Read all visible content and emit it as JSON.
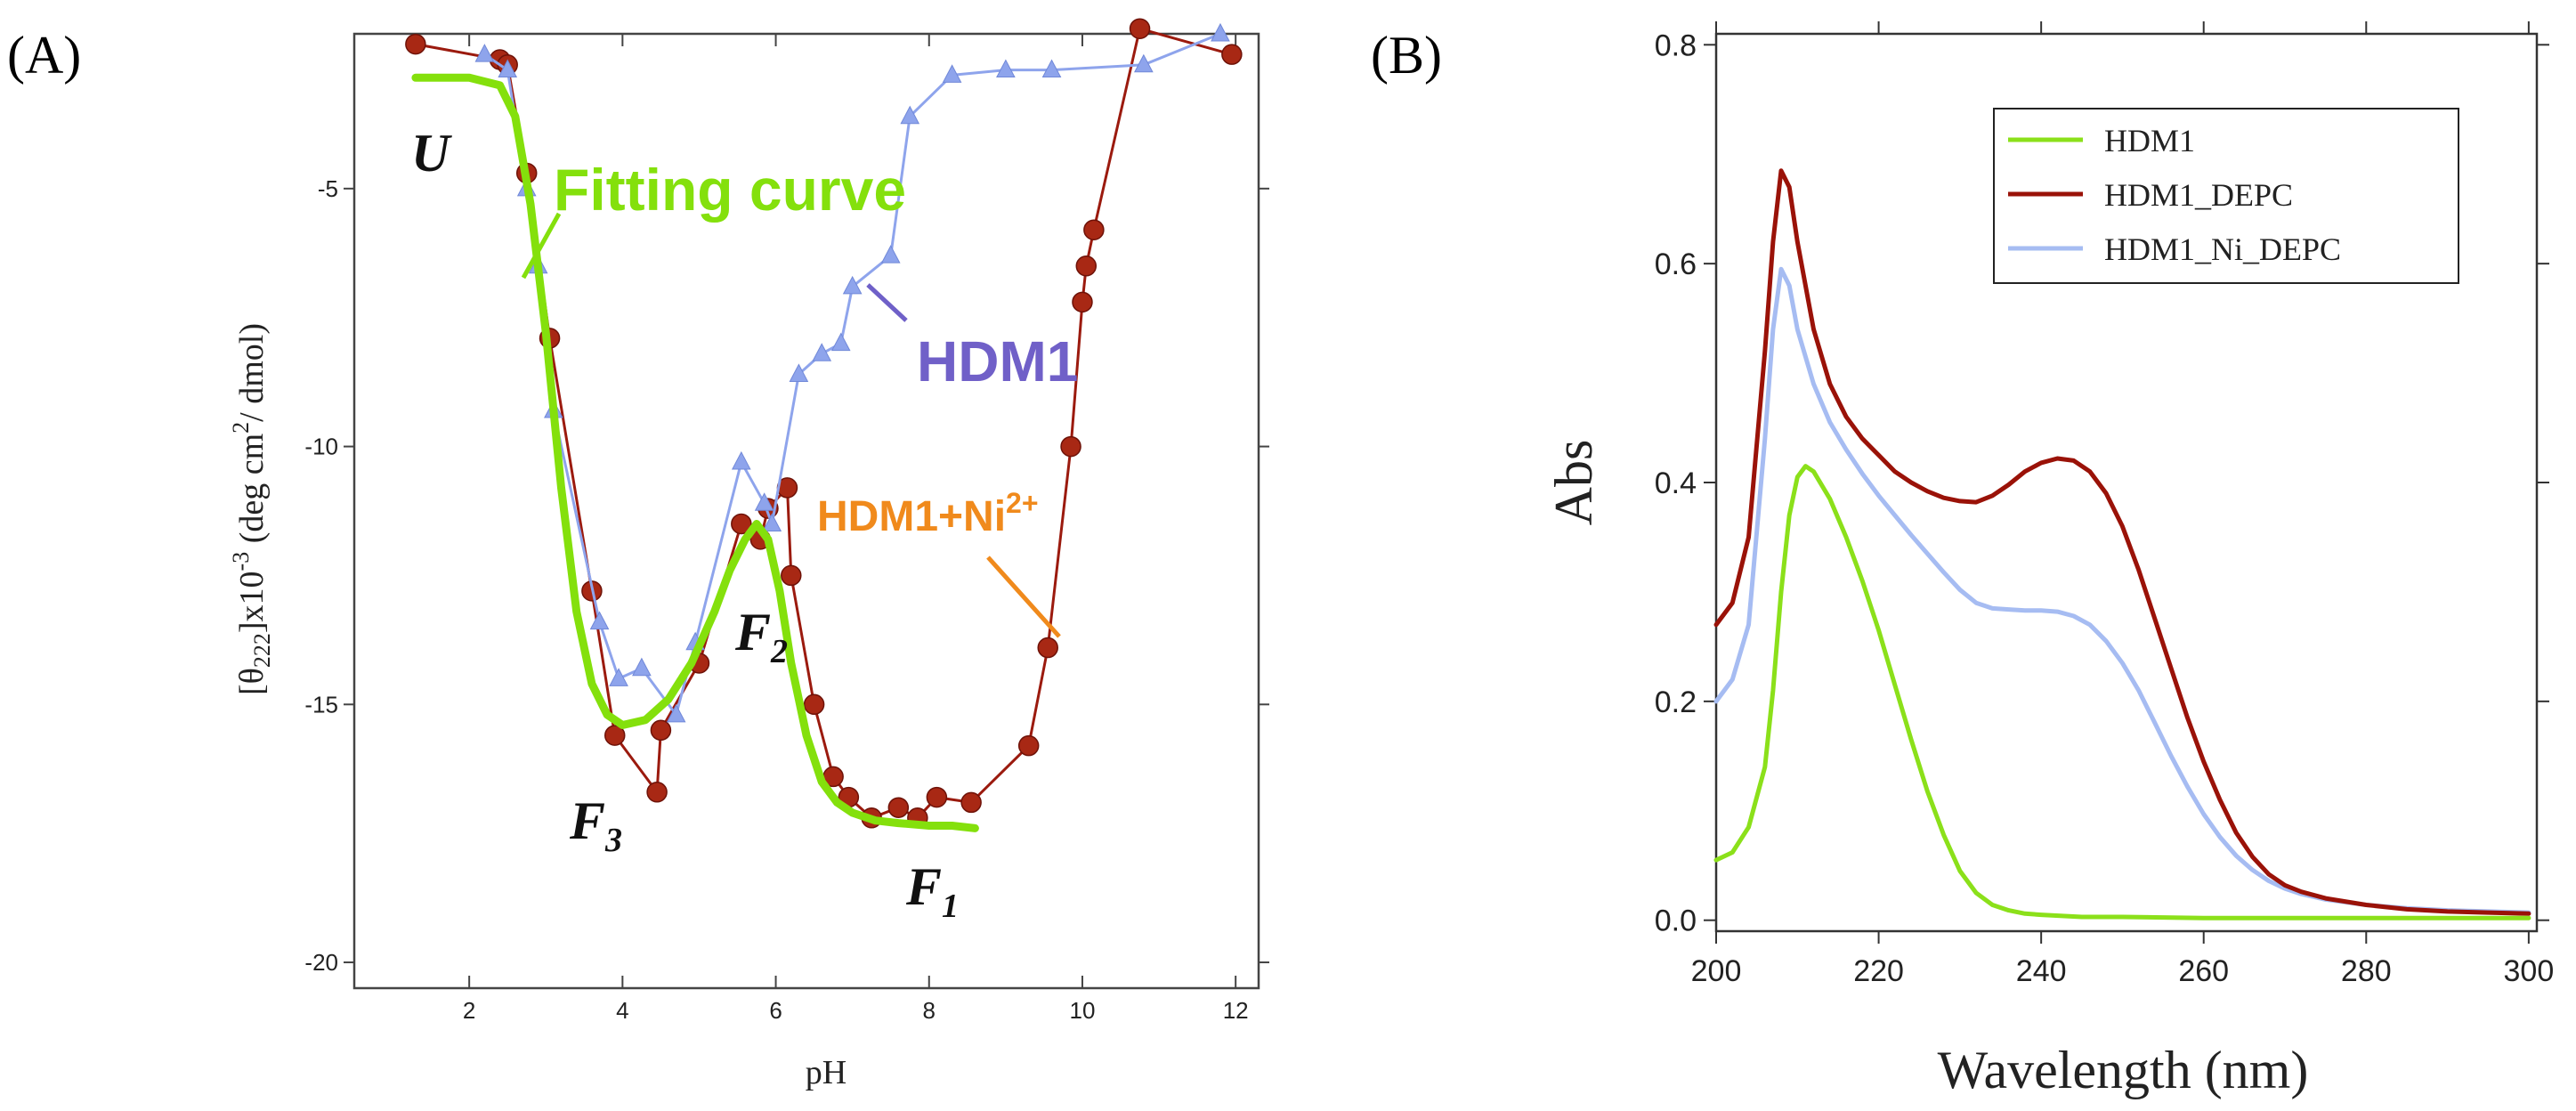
{
  "panel_labels": {
    "a": "(A)",
    "b": "(B)"
  },
  "chart_data": [
    {
      "type": "line",
      "panel": "(A)",
      "xlabel": "pH",
      "ylabel": "[θ222]x10-3 (deg cm2/ dmol)",
      "ylabel_parts": {
        "open": "[θ",
        "sub": "222",
        "mid": "]x10",
        "sup1": "-3",
        "unit": " (deg cm",
        "sup2": "2",
        "tail": "/ dmol)"
      },
      "xlim": [
        0.5,
        12.3
      ],
      "ylim": [
        -20.5,
        -2.0
      ],
      "xticks": [
        2,
        4,
        6,
        8,
        10,
        12
      ],
      "yticks": [
        -5,
        -10,
        -15,
        -20
      ],
      "xtick_labels": [
        "2",
        "4",
        "6",
        "8",
        "10",
        "12"
      ],
      "ytick_labels": [
        "-5",
        "-10",
        "-15",
        "-20"
      ],
      "series": [
        {
          "name": "HDM1+Ni2+",
          "color": "#9b1a0e",
          "marker": "circle",
          "x": [
            1.3,
            2.4,
            2.5,
            2.75,
            3.05,
            3.6,
            3.9,
            4.45,
            4.5,
            5.0,
            5.55,
            5.8,
            5.9,
            6.15,
            6.2,
            6.5,
            6.75,
            6.95,
            7.25,
            7.6,
            7.85,
            8.1,
            8.55,
            9.3,
            9.55,
            9.85,
            10.0,
            10.05,
            10.15,
            10.75,
            11.95
          ],
          "y": [
            -2.2,
            -2.5,
            -2.6,
            -4.7,
            -7.9,
            -12.8,
            -15.6,
            -16.7,
            -15.5,
            -14.2,
            -11.5,
            -11.8,
            -11.2,
            -10.8,
            -12.5,
            -15.0,
            -16.4,
            -16.8,
            -17.2,
            -17.0,
            -17.2,
            -16.8,
            -16.9,
            -15.8,
            -13.9,
            -10.0,
            -7.2,
            -6.5,
            -5.8,
            -1.9,
            -2.4
          ]
        },
        {
          "name": "HDM1",
          "color": "#8ea4ec",
          "marker": "triangle",
          "x": [
            2.2,
            2.5,
            2.75,
            2.9,
            3.1,
            3.7,
            3.95,
            4.25,
            4.7,
            4.95,
            5.55,
            5.85,
            5.95,
            6.3,
            6.6,
            6.85,
            7.0,
            7.5,
            7.75,
            8.3,
            9.0,
            9.6,
            10.8,
            11.8
          ],
          "y": [
            -2.4,
            -2.7,
            -5.0,
            -6.5,
            -9.3,
            -13.4,
            -14.5,
            -14.3,
            -15.2,
            -13.8,
            -10.3,
            -11.1,
            -11.5,
            -8.6,
            -8.2,
            -8.0,
            -6.9,
            -6.3,
            -3.6,
            -2.8,
            -2.7,
            -2.7,
            -2.6,
            -2.0
          ]
        },
        {
          "name": "Fitting curve",
          "color": "#84e00c",
          "marker": "none",
          "x": [
            1.3,
            2.0,
            2.4,
            2.6,
            2.8,
            3.0,
            3.2,
            3.4,
            3.6,
            3.8,
            4.0,
            4.3,
            4.6,
            4.9,
            5.2,
            5.4,
            5.6,
            5.75,
            5.9,
            6.05,
            6.2,
            6.4,
            6.6,
            6.8,
            7.0,
            7.3,
            7.6,
            8.0,
            8.3,
            8.6
          ],
          "y": [
            -2.85,
            -2.85,
            -3.0,
            -3.6,
            -5.3,
            -7.8,
            -10.8,
            -13.2,
            -14.6,
            -15.2,
            -15.4,
            -15.3,
            -14.9,
            -14.2,
            -13.2,
            -12.4,
            -11.8,
            -11.5,
            -11.8,
            -12.8,
            -14.2,
            -15.6,
            -16.5,
            -16.9,
            -17.1,
            -17.25,
            -17.3,
            -17.35,
            -17.35,
            -17.4
          ]
        }
      ],
      "annotations": {
        "state_u": "U",
        "state_f1": "F",
        "state_f1_sub": "1",
        "state_f2": "F",
        "state_f2_sub": "2",
        "state_f3": "F",
        "state_f3_sub": "3",
        "fitting_label": "Fitting curve",
        "hdm1_label": "HDM1",
        "ni_label_base": "HDM1+Ni",
        "ni_label_sup": "2+"
      },
      "colors": {
        "fitting": "#84e00c",
        "hdm1_label": "#7060c8",
        "ni_label": "#f08a1c",
        "hdm1_line": "#8ea4ec",
        "ni_line": "#9b1a0e",
        "ni_marker": "#a82814"
      }
    },
    {
      "type": "line",
      "panel": "(B)",
      "xlabel": "Wavelength (nm)",
      "ylabel": "Abs",
      "xlim": [
        200,
        301
      ],
      "ylim": [
        -0.01,
        0.81
      ],
      "xticks": [
        200,
        220,
        240,
        260,
        280,
        300
      ],
      "yticks": [
        0.0,
        0.2,
        0.4,
        0.6,
        0.8
      ],
      "xtick_labels": [
        "200",
        "220",
        "240",
        "260",
        "280",
        "300"
      ],
      "ytick_labels": [
        "0.0",
        "0.2",
        "0.4",
        "0.6",
        "0.8"
      ],
      "legend_position": "top-right",
      "series": [
        {
          "name": "HDM1",
          "color": "#8be01a",
          "x": [
            200,
            202,
            204,
            206,
            207,
            208,
            209,
            210,
            211,
            212,
            214,
            216,
            218,
            220,
            222,
            224,
            226,
            228,
            230,
            232,
            234,
            236,
            238,
            240,
            245,
            250,
            260,
            280,
            300
          ],
          "y": [
            0.055,
            0.062,
            0.085,
            0.14,
            0.21,
            0.3,
            0.37,
            0.405,
            0.415,
            0.41,
            0.385,
            0.35,
            0.31,
            0.265,
            0.215,
            0.165,
            0.118,
            0.078,
            0.045,
            0.025,
            0.014,
            0.009,
            0.006,
            0.005,
            0.003,
            0.003,
            0.002,
            0.002,
            0.002
          ]
        },
        {
          "name": "HDM1_DEPC",
          "color": "#9a1208",
          "x": [
            200,
            202,
            204,
            206,
            207,
            208,
            209,
            210,
            212,
            214,
            216,
            218,
            220,
            222,
            224,
            226,
            228,
            230,
            232,
            234,
            236,
            238,
            240,
            242,
            244,
            246,
            248,
            250,
            252,
            254,
            256,
            258,
            260,
            262,
            264,
            266,
            268,
            270,
            272,
            275,
            280,
            285,
            290,
            295,
            300
          ],
          "y": [
            0.27,
            0.29,
            0.35,
            0.52,
            0.62,
            0.685,
            0.67,
            0.62,
            0.54,
            0.49,
            0.46,
            0.44,
            0.425,
            0.41,
            0.4,
            0.392,
            0.386,
            0.383,
            0.382,
            0.388,
            0.398,
            0.41,
            0.418,
            0.422,
            0.42,
            0.41,
            0.39,
            0.36,
            0.32,
            0.275,
            0.23,
            0.185,
            0.145,
            0.11,
            0.08,
            0.058,
            0.042,
            0.032,
            0.026,
            0.02,
            0.014,
            0.01,
            0.008,
            0.007,
            0.006
          ]
        },
        {
          "name": "HDM1_Ni_DEPC",
          "color": "#a6bcf2",
          "x": [
            200,
            202,
            204,
            206,
            207,
            208,
            209,
            210,
            212,
            214,
            216,
            218,
            220,
            222,
            224,
            226,
            228,
            230,
            232,
            234,
            236,
            238,
            240,
            242,
            244,
            246,
            248,
            250,
            252,
            254,
            256,
            258,
            260,
            262,
            264,
            266,
            268,
            270,
            272,
            275,
            280,
            285,
            290,
            295,
            300
          ],
          "y": [
            0.2,
            0.22,
            0.27,
            0.44,
            0.54,
            0.595,
            0.58,
            0.54,
            0.49,
            0.455,
            0.43,
            0.408,
            0.388,
            0.37,
            0.352,
            0.335,
            0.318,
            0.302,
            0.29,
            0.285,
            0.284,
            0.283,
            0.283,
            0.282,
            0.278,
            0.27,
            0.255,
            0.235,
            0.21,
            0.18,
            0.15,
            0.122,
            0.097,
            0.076,
            0.059,
            0.046,
            0.036,
            0.029,
            0.024,
            0.019,
            0.014,
            0.011,
            0.009,
            0.008,
            0.007
          ]
        }
      ]
    }
  ]
}
